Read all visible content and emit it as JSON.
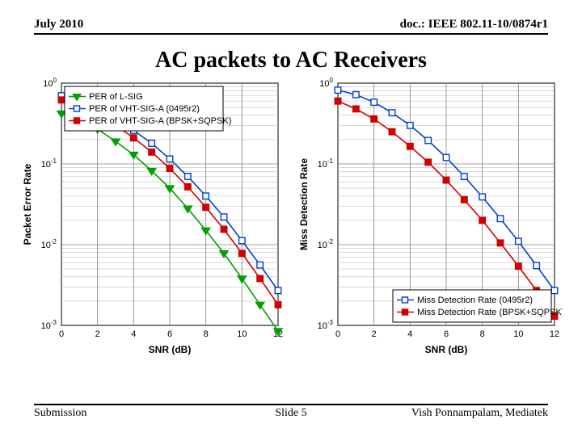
{
  "header": {
    "left": "July 2010",
    "right": "doc.: IEEE 802.11-10/0874r1"
  },
  "title": "AC packets to AC Receivers",
  "footer": {
    "left": "Submission",
    "center": "Slide 5",
    "right": "Vish Ponnampalam, Mediatek"
  },
  "chart_left": {
    "type": "line-log",
    "xlabel": "SNR (dB)",
    "ylabel": "Packet Error Rate",
    "xlim": [
      0,
      12
    ],
    "xtick_step": 2,
    "ylim_exp": [
      -3,
      0
    ],
    "background_color": "#ffffff",
    "grid_major_color": "#808080",
    "grid_minor_color": "#c0c0c0",
    "axis_label_fontsize": 12,
    "tick_fontsize": 11,
    "line_width": 1.6,
    "marker_size": 5,
    "legend": {
      "position": "upper-left",
      "items": [
        {
          "label": "PER of L-SIG",
          "color": "#00a000",
          "marker": "triangle-down"
        },
        {
          "label": "PER of VHT-SIG-A (0495r2)",
          "color": "#0040d0",
          "marker": "square-open"
        },
        {
          "label": "PER of VHT-SIG-A (BPSK+SQPSK)",
          "color": "#d00000",
          "marker": "square-filled"
        }
      ]
    },
    "series": [
      {
        "name": "L-SIG",
        "color": "#00a000",
        "marker": "triangle-down",
        "x": [
          0,
          1,
          2,
          3,
          4,
          5,
          6,
          7,
          8,
          9,
          10,
          11,
          12
        ],
        "y": [
          0.42,
          0.35,
          0.27,
          0.19,
          0.13,
          0.082,
          0.05,
          0.028,
          0.015,
          0.0078,
          0.0038,
          0.0018,
          0.00085
        ]
      },
      {
        "name": "VHT-0495r2",
        "color": "#0040d0",
        "marker": "square-open",
        "x": [
          0,
          1,
          2,
          3,
          4,
          5,
          6,
          7,
          8,
          9,
          10,
          11,
          12
        ],
        "y": [
          0.7,
          0.6,
          0.48,
          0.36,
          0.26,
          0.18,
          0.115,
          0.07,
          0.04,
          0.022,
          0.0112,
          0.0056,
          0.0027
        ]
      },
      {
        "name": "VHT-BPSK+SQPSK",
        "color": "#d00000",
        "marker": "square-filled",
        "x": [
          0,
          1,
          2,
          3,
          4,
          5,
          6,
          7,
          8,
          9,
          10,
          11,
          12
        ],
        "y": [
          0.62,
          0.52,
          0.41,
          0.3,
          0.21,
          0.14,
          0.088,
          0.052,
          0.029,
          0.0155,
          0.0078,
          0.0038,
          0.0018
        ]
      }
    ]
  },
  "chart_right": {
    "type": "line-log",
    "xlabel": "SNR (dB)",
    "ylabel": "Miss Detection Rate",
    "xlim": [
      0,
      12
    ],
    "xtick_step": 2,
    "ylim_exp": [
      -3,
      0
    ],
    "background_color": "#ffffff",
    "grid_major_color": "#808080",
    "grid_minor_color": "#c0c0c0",
    "axis_label_fontsize": 12,
    "tick_fontsize": 11,
    "line_width": 1.6,
    "marker_size": 5,
    "legend": {
      "position": "lower-right",
      "items": [
        {
          "label": "Miss Detection Rate (0495r2)",
          "color": "#0040d0",
          "marker": "square-open"
        },
        {
          "label": "Miss Detection Rate (BPSK+SQPSK)",
          "color": "#d00000",
          "marker": "square-filled"
        }
      ]
    },
    "series": [
      {
        "name": "MDR-0495r2",
        "color": "#0040d0",
        "marker": "square-open",
        "x": [
          0,
          1,
          2,
          3,
          4,
          5,
          6,
          7,
          8,
          9,
          10,
          11,
          12
        ],
        "y": [
          0.82,
          0.72,
          0.58,
          0.43,
          0.3,
          0.195,
          0.12,
          0.07,
          0.039,
          0.021,
          0.011,
          0.0055,
          0.0027
        ]
      },
      {
        "name": "MDR-BPSK+SQPSK",
        "color": "#d00000",
        "marker": "square-filled",
        "x": [
          0,
          1,
          2,
          3,
          4,
          5,
          6,
          7,
          8,
          9,
          10,
          11,
          12
        ],
        "y": [
          0.6,
          0.48,
          0.36,
          0.25,
          0.165,
          0.105,
          0.063,
          0.036,
          0.02,
          0.0105,
          0.0054,
          0.0027,
          0.0013
        ]
      }
    ]
  }
}
